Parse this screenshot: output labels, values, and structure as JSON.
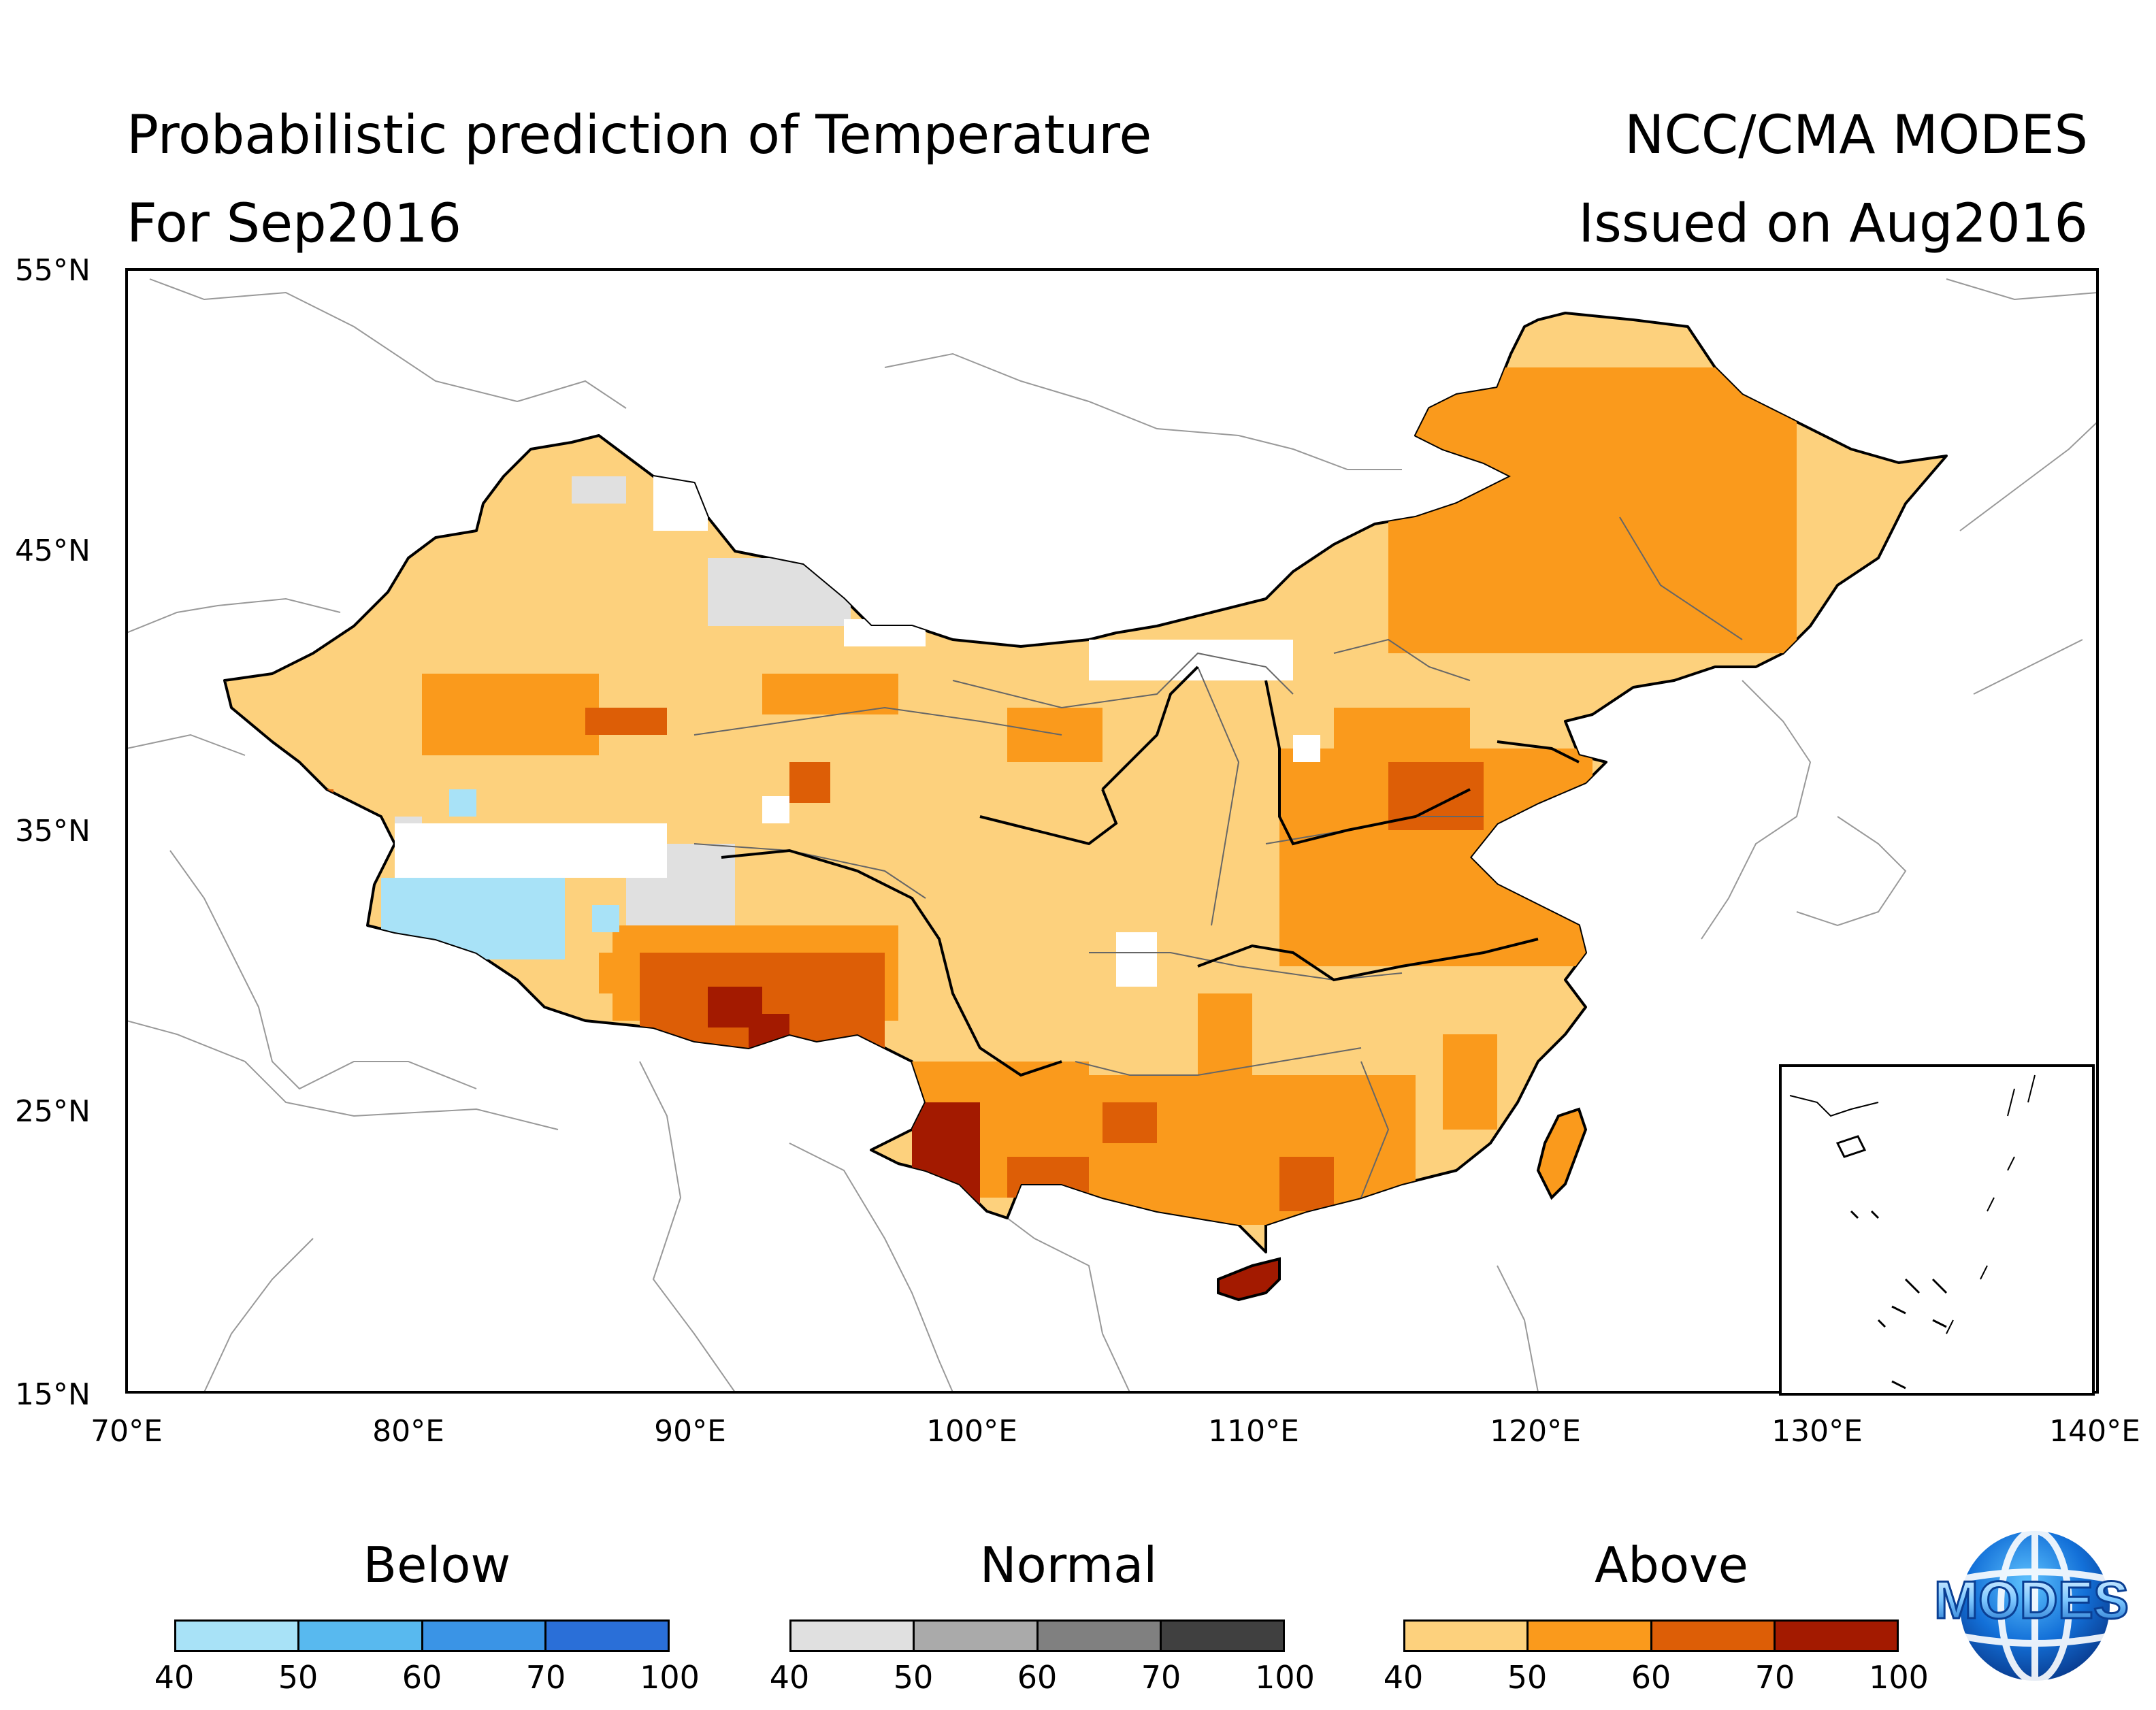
{
  "header": {
    "title": "Probabilistic prediction of Temperature",
    "forecast_month": "For Sep2016",
    "producer": "NCC/CMA MODES",
    "issued": "Issued on Aug2016"
  },
  "map": {
    "lon_labels": [
      "70°E",
      "80°E",
      "90°E",
      "100°E",
      "110°E",
      "120°E",
      "130°E",
      "140°E"
    ],
    "lat_labels": [
      "55°N",
      "45°N",
      "35°N",
      "25°N",
      "15°N"
    ]
  },
  "legend": {
    "below": {
      "title": "Below",
      "ticks": [
        "40",
        "50",
        "60",
        "70",
        "100"
      ],
      "colors": [
        "#a8e2f7",
        "#58b9ef",
        "#3a94e6",
        "#2a6fd8"
      ]
    },
    "normal": {
      "title": "Normal",
      "ticks": [
        "40",
        "50",
        "60",
        "70",
        "100"
      ],
      "colors": [
        "#e0e0e0",
        "#aaaaaa",
        "#808080",
        "#404040"
      ]
    },
    "above": {
      "title": "Above",
      "ticks": [
        "40",
        "50",
        "60",
        "70",
        "100"
      ],
      "colors": [
        "#fdd17d",
        "#fa9a1c",
        "#dd5e06",
        "#a31a00"
      ]
    }
  },
  "logo": {
    "text": "MODES"
  }
}
